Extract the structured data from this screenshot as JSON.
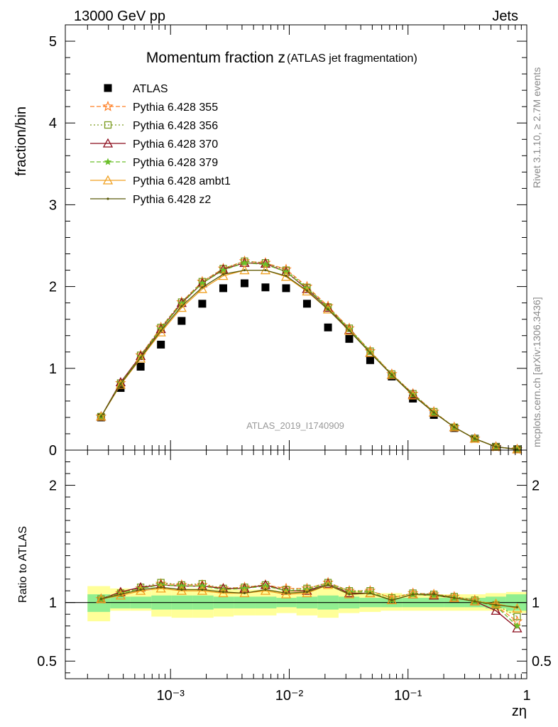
{
  "header": {
    "left": "13000 GeV pp",
    "right": "Jets"
  },
  "side_labels": {
    "rivet": "Rivet 3.1.10, ≥ 2.7M events",
    "mcplots": "mcplots.cern.ch [arXiv:1306.3436]"
  },
  "colors": {
    "atlas": "#000000",
    "p355": "#ff7f24",
    "p356": "#7a9a1e",
    "p370": "#8b0a1a",
    "p379": "#6abf2a",
    "ambt1": "#f0a020",
    "z2": "#5a5a0a",
    "band_inner": "#90ee90",
    "band_outer": "#ffff99"
  },
  "chart_data": [
    {
      "type": "scatter",
      "title": "Momentum fraction z",
      "subtitle": "(ATLAS jet fragmentation)",
      "analysis_label": "ATLAS_2019_I1740909",
      "ylabel": "fraction/bin",
      "xlabel": "zη",
      "xscale": "log",
      "xlim": [
        0.00013,
        1
      ],
      "ylim": [
        0,
        5.2
      ],
      "yticks": [
        0,
        1,
        2,
        3,
        4,
        5
      ],
      "ytick_labels": [
        "0",
        "1",
        "2",
        "3",
        "4",
        "5"
      ],
      "legend_position": "top-left",
      "x": [
        0.00026,
        0.00038,
        0.00056,
        0.00083,
        0.00124,
        0.00185,
        0.00278,
        0.0042,
        0.0063,
        0.0094,
        0.0141,
        0.0212,
        0.032,
        0.048,
        0.073,
        0.11,
        0.165,
        0.245,
        0.365,
        0.55,
        0.83
      ],
      "series": [
        {
          "name": "ATLAS",
          "marker": "square",
          "values": [
            0.4,
            0.76,
            1.02,
            1.29,
            1.58,
            1.79,
            1.98,
            2.04,
            1.99,
            1.98,
            1.79,
            1.5,
            1.36,
            1.1,
            0.9,
            0.63,
            0.43,
            0.27,
            0.14,
            0.04,
            0.01
          ]
        },
        {
          "name": "Pythia 6.428 355",
          "marker": "star",
          "dash": "6,3",
          "values": [
            0.41,
            0.82,
            1.16,
            1.5,
            1.81,
            2.06,
            2.22,
            2.31,
            2.29,
            2.21,
            2.0,
            1.76,
            1.49,
            1.21,
            0.93,
            0.69,
            0.47,
            0.28,
            0.14,
            0.04,
            0.01
          ]
        },
        {
          "name": "Pythia 6.428 356",
          "marker": "square-open",
          "dash": "2,3",
          "values": [
            0.41,
            0.82,
            1.16,
            1.5,
            1.81,
            2.06,
            2.22,
            2.31,
            2.29,
            2.2,
            1.99,
            1.75,
            1.49,
            1.21,
            0.93,
            0.69,
            0.47,
            0.28,
            0.14,
            0.04,
            0.01
          ]
        },
        {
          "name": "Pythia 6.428 370",
          "marker": "triangle-open",
          "dash": "",
          "values": [
            0.41,
            0.83,
            1.15,
            1.48,
            1.8,
            2.04,
            2.21,
            2.29,
            2.28,
            2.18,
            1.97,
            1.74,
            1.47,
            1.19,
            0.92,
            0.68,
            0.46,
            0.28,
            0.14,
            0.04,
            0.01
          ]
        },
        {
          "name": "Pythia 6.428 379",
          "marker": "star-small",
          "dash": "6,3",
          "values": [
            0.41,
            0.82,
            1.14,
            1.48,
            1.79,
            2.04,
            2.2,
            2.29,
            2.27,
            2.18,
            1.98,
            1.74,
            1.48,
            1.2,
            0.92,
            0.68,
            0.46,
            0.28,
            0.14,
            0.04,
            0.01
          ]
        },
        {
          "name": "Pythia 6.428 ambt1",
          "marker": "triangle-open",
          "dash": "",
          "values": [
            0.41,
            0.8,
            1.12,
            1.44,
            1.74,
            1.97,
            2.13,
            2.2,
            2.2,
            2.12,
            1.94,
            1.72,
            1.46,
            1.19,
            0.92,
            0.67,
            0.46,
            0.28,
            0.14,
            0.04,
            0.01
          ]
        },
        {
          "name": "Pythia 6.428 z2",
          "marker": "dot",
          "dash": "",
          "values": [
            0.41,
            0.81,
            1.13,
            1.46,
            1.76,
            1.99,
            2.15,
            2.2,
            2.2,
            2.13,
            1.95,
            1.72,
            1.46,
            1.19,
            0.92,
            0.67,
            0.46,
            0.28,
            0.14,
            0.04,
            0.01
          ]
        }
      ]
    },
    {
      "type": "line",
      "ylabel": "Ratio to ATLAS",
      "xscale": "log",
      "xlim": [
        0.00013,
        1
      ],
      "ylim": [
        0.35,
        2.3
      ],
      "yticks": [
        0.5,
        1,
        2
      ],
      "ytick_labels": [
        "0.5",
        "1",
        "2"
      ],
      "xtick_labels": [
        "10⁻³",
        "10⁻²",
        "10⁻¹",
        "1"
      ],
      "xticks": [
        0.001,
        0.01,
        0.1,
        1
      ],
      "band_edges": [
        0.0002,
        0.00031,
        0.00046,
        0.00069,
        0.00102,
        0.00153,
        0.0023,
        0.0034,
        0.0052,
        0.0078,
        0.0115,
        0.0173,
        0.026,
        0.039,
        0.059,
        0.089,
        0.134,
        0.2,
        0.3,
        0.45,
        0.67,
        1.0
      ],
      "inner_band": [
        [
          0.92,
          1.07
        ],
        [
          0.95,
          1.05
        ],
        [
          0.95,
          1.05
        ],
        [
          0.94,
          1.06
        ],
        [
          0.94,
          1.06
        ],
        [
          0.94,
          1.06
        ],
        [
          0.95,
          1.05
        ],
        [
          0.95,
          1.05
        ],
        [
          0.95,
          1.05
        ],
        [
          0.96,
          1.04
        ],
        [
          0.95,
          1.05
        ],
        [
          0.94,
          1.06
        ],
        [
          0.95,
          1.05
        ],
        [
          0.96,
          1.04
        ],
        [
          0.96,
          1.04
        ],
        [
          0.96,
          1.04
        ],
        [
          0.96,
          1.04
        ],
        [
          0.96,
          1.04
        ],
        [
          0.96,
          1.04
        ],
        [
          0.95,
          1.05
        ],
        [
          0.93,
          1.07
        ]
      ],
      "outer_band": [
        [
          0.84,
          1.14
        ],
        [
          0.93,
          1.12
        ],
        [
          0.93,
          1.1
        ],
        [
          0.88,
          1.12
        ],
        [
          0.87,
          1.12
        ],
        [
          0.87,
          1.12
        ],
        [
          0.88,
          1.11
        ],
        [
          0.89,
          1.11
        ],
        [
          0.89,
          1.11
        ],
        [
          0.91,
          1.1
        ],
        [
          0.89,
          1.11
        ],
        [
          0.87,
          1.13
        ],
        [
          0.91,
          1.1
        ],
        [
          0.92,
          1.08
        ],
        [
          0.93,
          1.08
        ],
        [
          0.93,
          1.07
        ],
        [
          0.93,
          1.07
        ],
        [
          0.93,
          1.07
        ],
        [
          0.93,
          1.07
        ],
        [
          0.93,
          1.08
        ],
        [
          0.91,
          1.09
        ]
      ],
      "series": [
        {
          "name": "Pythia 6.428 355",
          "values": [
            1.03,
            1.08,
            1.12,
            1.16,
            1.15,
            1.15,
            1.12,
            1.13,
            1.15,
            1.12,
            1.12,
            1.17,
            1.1,
            1.1,
            1.04,
            1.08,
            1.07,
            1.05,
            1.02,
            0.97,
            0.84
          ]
        },
        {
          "name": "Pythia 6.428 356",
          "values": [
            1.03,
            1.08,
            1.13,
            1.17,
            1.15,
            1.16,
            1.12,
            1.13,
            1.15,
            1.11,
            1.12,
            1.17,
            1.1,
            1.1,
            1.04,
            1.08,
            1.07,
            1.05,
            1.02,
            0.98,
            0.88
          ]
        },
        {
          "name": "Pythia 6.428 370",
          "values": [
            1.03,
            1.09,
            1.13,
            1.15,
            1.14,
            1.14,
            1.12,
            1.12,
            1.15,
            1.1,
            1.1,
            1.16,
            1.08,
            1.08,
            1.02,
            1.07,
            1.06,
            1.04,
            1.01,
            0.93,
            0.78
          ]
        },
        {
          "name": "Pythia 6.428 379",
          "values": [
            1.03,
            1.08,
            1.12,
            1.15,
            1.14,
            1.14,
            1.11,
            1.12,
            1.14,
            1.1,
            1.11,
            1.16,
            1.09,
            1.09,
            1.02,
            1.07,
            1.06,
            1.04,
            1.01,
            0.97,
            0.8
          ]
        },
        {
          "name": "Pythia 6.428 ambt1",
          "values": [
            1.03,
            1.06,
            1.1,
            1.12,
            1.1,
            1.1,
            1.08,
            1.08,
            1.1,
            1.07,
            1.08,
            1.15,
            1.07,
            1.08,
            1.02,
            1.07,
            1.07,
            1.04,
            1.01,
            0.99,
            0.95
          ]
        },
        {
          "name": "Pythia 6.428 z2",
          "values": [
            1.03,
            1.07,
            1.11,
            1.13,
            1.11,
            1.11,
            1.09,
            1.08,
            1.11,
            1.08,
            1.09,
            1.15,
            1.07,
            1.08,
            1.02,
            1.07,
            1.07,
            1.04,
            1.01,
            0.98,
            0.96
          ]
        }
      ]
    }
  ]
}
